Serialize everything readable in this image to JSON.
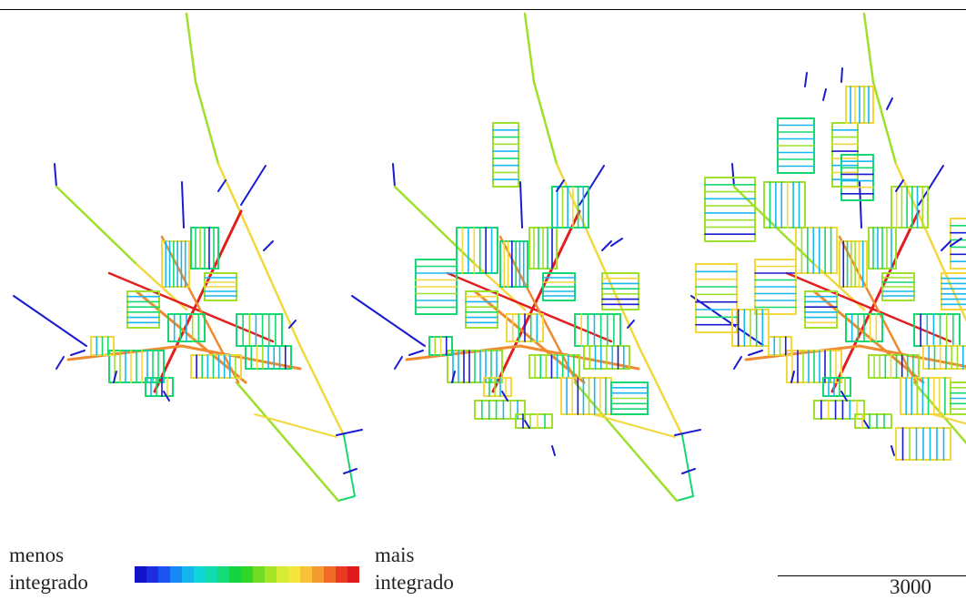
{
  "legend": {
    "less_line1": "menos",
    "less_line2": "integrado",
    "more_line1": "mais",
    "more_line2": "integrado",
    "colors": [
      "#1212c8",
      "#1d2ee0",
      "#1a55f0",
      "#1688f2",
      "#14b6ee",
      "#10d6d8",
      "#12dcac",
      "#14da78",
      "#16d440",
      "#30d626",
      "#70dc24",
      "#a6e428",
      "#d4ec36",
      "#f4e63a",
      "#f6c436",
      "#f49c30",
      "#f06c28",
      "#ea3a22",
      "#e01a1a"
    ]
  },
  "scale": {
    "label": "3000"
  },
  "integration_colors": {
    "lowest": "#1a1ad0",
    "low": "#18b8ee",
    "mid_low": "#16d870",
    "mid": "#9ee02c",
    "mid_high": "#f2d83c",
    "high": "#f08a30",
    "highest": "#e21e1e"
  },
  "panels_count": 3
}
